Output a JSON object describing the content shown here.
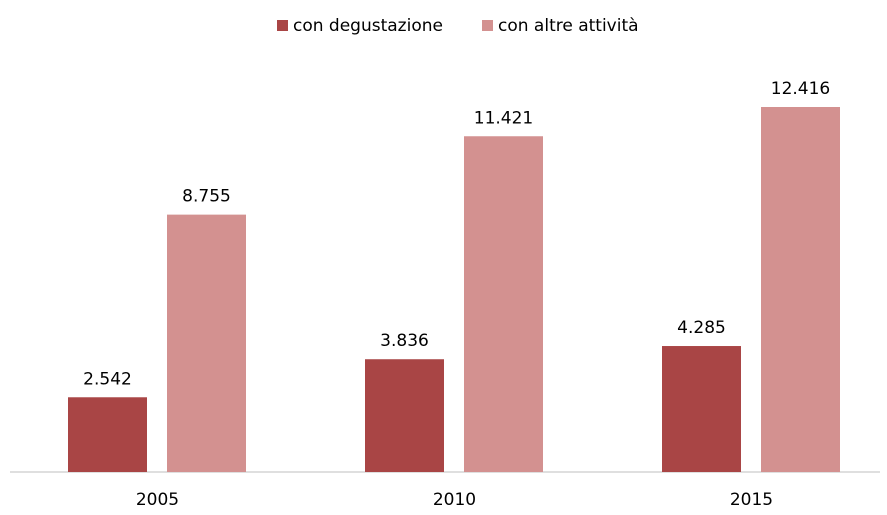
{
  "chart_data": {
    "type": "bar",
    "categories": [
      "2005",
      "2010",
      "2015"
    ],
    "series": [
      {
        "name": "con degustazione",
        "color": "#a94545",
        "values": [
          2542,
          3836,
          4285
        ],
        "value_labels": [
          "2.542",
          "3.836",
          "4.285"
        ]
      },
      {
        "name": "con altre attività",
        "color": "#d39190",
        "values": [
          8755,
          11421,
          12416
        ],
        "value_labels": [
          "8.755",
          "11.421",
          "12.416"
        ]
      }
    ]
  }
}
